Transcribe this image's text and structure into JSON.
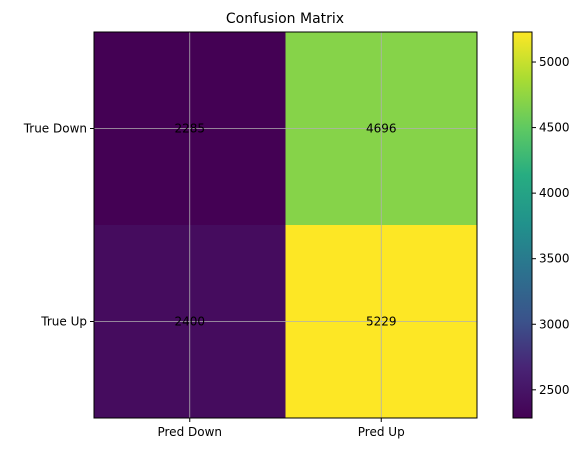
{
  "chart_data": {
    "type": "heatmap",
    "title": "Confusion Matrix",
    "x_categories": [
      "Pred Down",
      "Pred Up"
    ],
    "y_categories": [
      "True Down",
      "True Up"
    ],
    "values": [
      [
        2285,
        4696
      ],
      [
        2400,
        5229
      ]
    ],
    "value_labels": [
      [
        "2285",
        "4696"
      ],
      [
        "2400",
        "5229"
      ]
    ],
    "colormap": "viridis",
    "colorbar": {
      "range": [
        2285,
        5229
      ],
      "ticks": [
        2500,
        3000,
        3500,
        4000,
        4500,
        5000
      ],
      "tick_labels": [
        "2500",
        "3000",
        "3500",
        "4000",
        "4500",
        "5000"
      ]
    },
    "grid": true
  }
}
